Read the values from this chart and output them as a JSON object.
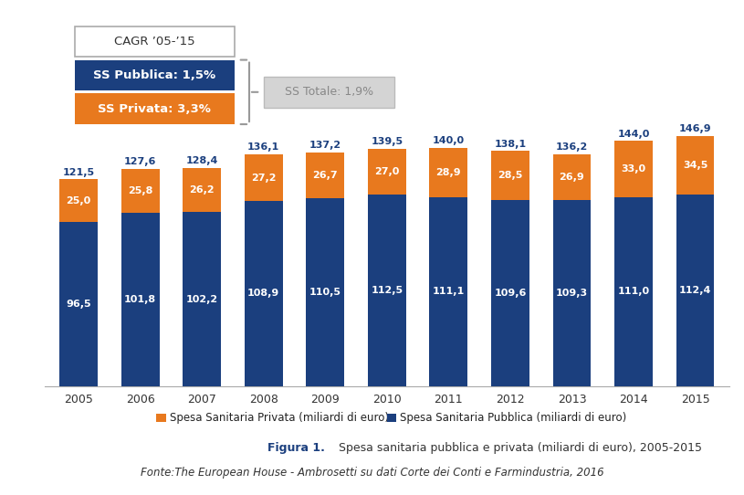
{
  "years": [
    "2005",
    "2006",
    "2007",
    "2008",
    "2009",
    "2010",
    "2011",
    "2012",
    "2013",
    "2014",
    "2015"
  ],
  "pubblica": [
    96.5,
    101.8,
    102.2,
    108.9,
    110.5,
    112.5,
    111.1,
    109.6,
    109.3,
    111.0,
    112.4
  ],
  "privata": [
    25.0,
    25.8,
    26.2,
    27.2,
    26.7,
    27.0,
    28.9,
    28.5,
    26.9,
    33.0,
    34.5
  ],
  "totale": [
    121.5,
    127.6,
    128.4,
    136.1,
    137.2,
    139.5,
    140.0,
    138.1,
    136.2,
    144.0,
    146.9
  ],
  "color_pubblica": "#1b3f7e",
  "color_privata": "#e8791e",
  "background_color": "#ffffff",
  "legend_privata": "Spesa Sanitaria Privata (miliardi di euro)",
  "legend_pubblica": "Spesa Sanitaria Pubblica (miliardi di euro)",
  "figura_label": "Figura 1.",
  "figura_text": "Spesa sanitaria pubblica e privata (miliardi di euro), 2005-2015",
  "fonte_text": "Fonte:The European House - Ambrosetti su dati Corte dei Conti e Farmindustria, 2016",
  "cagr_title": "CAGR ’05-’15",
  "cagr_pubblica": "SS Pubblica: 1,5%",
  "cagr_privata": "SS Privata: 3,3%",
  "cagr_totale": "SS Totale: 1,9%",
  "cagr_pubblica_color": "#1b3f7e",
  "cagr_privata_color": "#e8791e",
  "cagr_totale_bg": "#d4d4d4",
  "cagr_totale_text": "#888888"
}
